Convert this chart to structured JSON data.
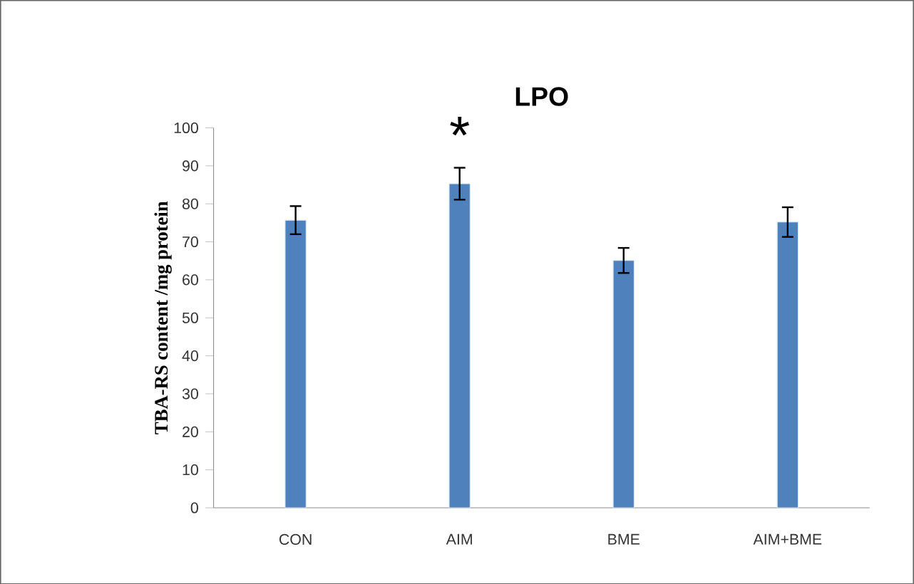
{
  "chart_data": {
    "type": "bar",
    "title": "LPO",
    "ylabel": "TBA-RS content /mg protein",
    "categories": [
      "CON",
      "AIM",
      "BME",
      "AIM+BME"
    ],
    "values": [
      75.7,
      85.3,
      65.1,
      75.2
    ],
    "errors": [
      3.7,
      4.2,
      3.3,
      3.9
    ],
    "color": "#4f81bd",
    "ylim": [
      0,
      100
    ],
    "yticks": [
      0,
      10,
      20,
      30,
      40,
      50,
      60,
      70,
      80,
      90,
      100
    ],
    "annotations": [
      "*"
    ]
  }
}
